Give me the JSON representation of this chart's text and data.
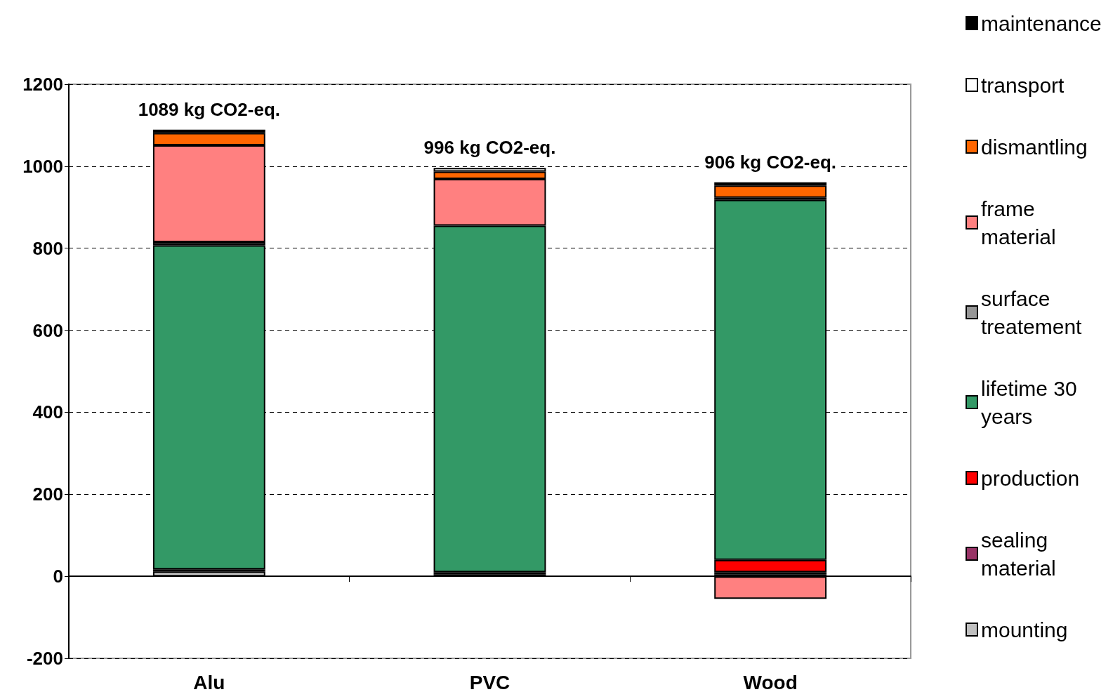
{
  "chart_data": {
    "type": "bar",
    "stacked": true,
    "categories": [
      "Alu",
      "PVC",
      "Wood"
    ],
    "totals": [
      "1089 kg CO2-eq.",
      "996 kg CO2-eq.",
      "906 kg CO2-eq."
    ],
    "series": [
      {
        "name": "mounting",
        "color": "#c0c0c0",
        "values": [
          12,
          5,
          5
        ]
      },
      {
        "name": "sealing material",
        "color": "#993366",
        "values": [
          5,
          5,
          5
        ]
      },
      {
        "name": "production",
        "color": "#ff0000",
        "values": [
          null,
          null,
          30
        ]
      },
      {
        "name": "lifetime 30 years",
        "color": "#339966",
        "values": [
          790,
          845,
          878
        ]
      },
      {
        "name": "surface treatement",
        "color": "#969696",
        "values": [
          8,
          null,
          5
        ]
      },
      {
        "name": "frame material",
        "color": "#ff8080",
        "values": [
          236,
          114,
          -55
        ]
      },
      {
        "name": "dismantling",
        "color": "#ff6600",
        "values": [
          30,
          18,
          30
        ]
      },
      {
        "name": "transport",
        "color": "#ffffff",
        "values": [
          null,
          9,
          null
        ]
      },
      {
        "name": "maintenance",
        "color": "#000000",
        "values": [
          8,
          null,
          8
        ]
      }
    ],
    "ylim": [
      -200,
      1200
    ],
    "yticks": [
      -200,
      0,
      200,
      400,
      600,
      800,
      1000,
      1200
    ],
    "grid": "y",
    "legend": "right"
  }
}
